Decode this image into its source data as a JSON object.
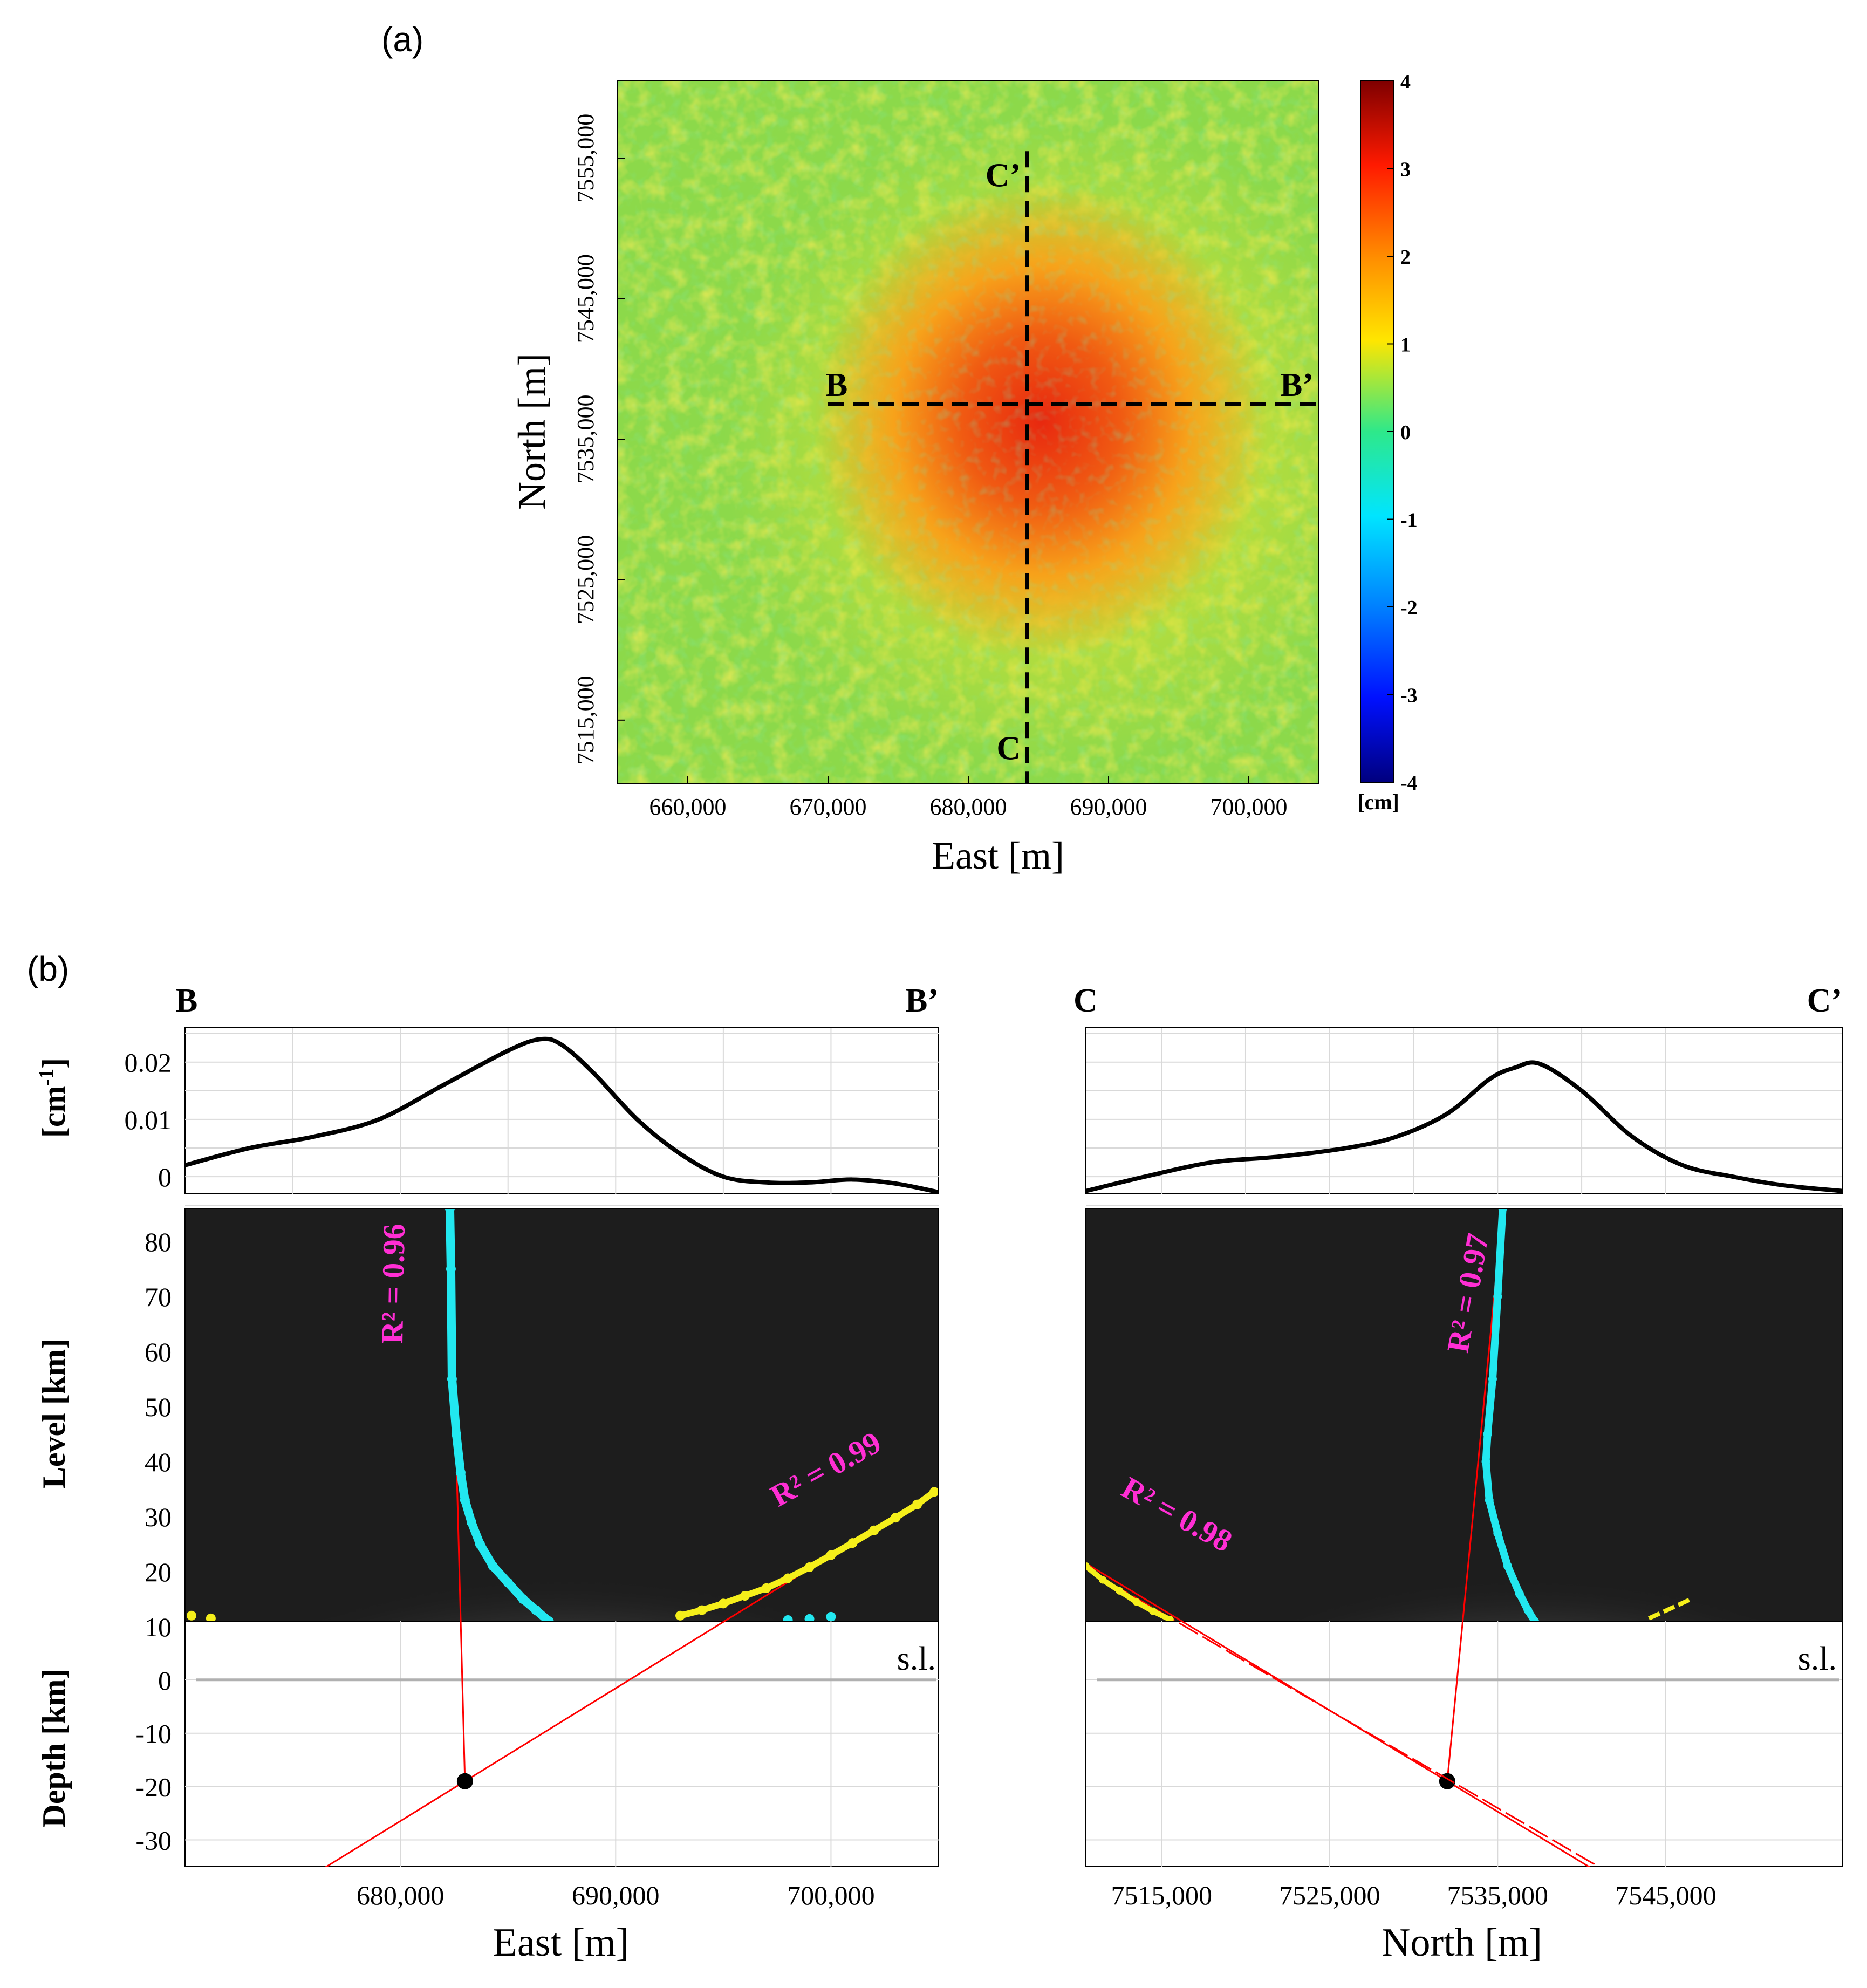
{
  "panel_a_label": "(a)",
  "panel_b_label": "(b)",
  "colors": {
    "profile_line": "#000000",
    "fit_line": "#ff0000",
    "cyan_points": "#22e8f0",
    "yellow_points": "#f5ef1a",
    "r2_label": "#ff2ed4",
    "grid": "#d9d9d9",
    "sea_level": "#b0b0b0"
  },
  "chart_data": [
    {
      "type": "heatmap",
      "title": "",
      "xlabel": "East [m]",
      "ylabel": "North [m]",
      "x_ticks": [
        "660,000",
        "670,000",
        "680,000",
        "690,000",
        "700,000"
      ],
      "x_tick_values": [
        660000,
        670000,
        680000,
        690000,
        700000
      ],
      "y_ticks": [
        "7515,000",
        "7525,000",
        "7535,000",
        "7545,000",
        "7555,000"
      ],
      "y_tick_values": [
        7515000,
        7525000,
        7535000,
        7545000,
        7555000
      ],
      "xlim": [
        655000,
        705000
      ],
      "ylim": [
        7510500,
        7560500
      ],
      "colorbar": {
        "ticks": [
          "4",
          "3",
          "2",
          "1",
          "0",
          "-1",
          "-2",
          "-3",
          "-4"
        ],
        "range": [
          -4,
          4
        ],
        "unit": "[cm]"
      },
      "anomaly_center": {
        "east": 686000,
        "north": 7537000,
        "peak_cm": 3.2
      },
      "profiles": [
        {
          "start_label": "B",
          "end_label": "B’",
          "orientation": "east-west",
          "north": 7537500,
          "east_range": [
            670000,
            705000
          ]
        },
        {
          "start_label": "C",
          "end_label": "C’",
          "orientation": "north-south",
          "east": 684200,
          "north_range": [
            7510500,
            7555500
          ]
        }
      ]
    },
    {
      "type": "line",
      "profile": {
        "start_label": "B",
        "end_label": "B’"
      },
      "xlabel": "East [m]",
      "x_ticks": [
        "680,000",
        "690,000",
        "700,000"
      ],
      "x_tick_values": [
        680000,
        690000,
        700000
      ],
      "xlim": [
        670000,
        705000
      ],
      "top": {
        "ylabel_main": "[cm",
        "ylabel_sup": "-1",
        "ylabel_close": "]",
        "y_ticks": [
          "0.02",
          "0.01",
          "0"
        ],
        "ylim": [
          -0.003,
          0.026
        ],
        "x": [
          670000,
          673000,
          676000,
          679000,
          682000,
          685000,
          686500,
          687500,
          689000,
          691000,
          693000,
          695000,
          697000,
          699000,
          701000,
          703000,
          705000
        ],
        "y": [
          0.002,
          0.005,
          0.007,
          0.01,
          0.016,
          0.022,
          0.024,
          0.023,
          0.018,
          0.01,
          0.004,
          0.0,
          -0.001,
          -0.001,
          -0.0005,
          -0.0012,
          -0.0027
        ]
      },
      "level": {
        "ylabel": "Level [km]",
        "y_ticks": [
          "80",
          "70",
          "60",
          "50",
          "40",
          "30",
          "20",
          "10"
        ],
        "ylim": [
          11,
          86
        ],
        "cyan_x": [
          682300,
          682350,
          682400,
          682600,
          682800,
          683000,
          683300,
          683700,
          684300,
          685000,
          685700,
          686300,
          686900
        ],
        "cyan_y": [
          86,
          75,
          55,
          45,
          38,
          33,
          29,
          25,
          21,
          18,
          15,
          13,
          11
        ],
        "yellow_x": [
          693000,
          694000,
          695000,
          696000,
          697000,
          698000,
          699000,
          700000,
          701000,
          702000,
          703000,
          704000,
          704800
        ],
        "yellow_y": [
          12,
          13,
          14.2,
          15.6,
          17,
          18.8,
          20.8,
          23,
          25.2,
          27.5,
          29.8,
          32.2,
          34.5
        ],
        "r2_left": "R² = 0.96",
        "r2_right": "R² = 0.99"
      },
      "depth": {
        "ylabel": "Depth [km]",
        "y_ticks": [
          "10",
          "0",
          "-10",
          "-20",
          "-30"
        ],
        "ylim": [
          -35,
          11
        ],
        "sea_level_label": "s.l.",
        "source_point": {
          "east": 683000,
          "depth": -19
        }
      }
    },
    {
      "type": "line",
      "profile": {
        "start_label": "C",
        "end_label": "C’"
      },
      "xlabel": "North [m]",
      "x_ticks": [
        "7515,000",
        "7525,000",
        "7535,000",
        "7545,000"
      ],
      "x_tick_values": [
        7515000,
        7525000,
        7535000,
        7545000
      ],
      "xlim": [
        7510500,
        7555500
      ],
      "top": {
        "ylim": [
          -0.003,
          0.026
        ],
        "x": [
          7510500,
          7514000,
          7518000,
          7522000,
          7526000,
          7529000,
          7532000,
          7534500,
          7536000,
          7537500,
          7540000,
          7543000,
          7546000,
          7549000,
          7552000,
          7555500
        ],
        "y": [
          -0.0025,
          0.0,
          0.0025,
          0.0035,
          0.005,
          0.007,
          0.011,
          0.017,
          0.019,
          0.0197,
          0.015,
          0.007,
          0.002,
          0.0,
          -0.0015,
          -0.0025
        ]
      },
      "level": {
        "ylim": [
          11,
          86
        ],
        "cyan_x": [
          7535300,
          7535000,
          7534700,
          7534400,
          7534300,
          7534500,
          7535000,
          7535600,
          7536300,
          7536800,
          7537200
        ],
        "cyan_y": [
          86,
          70,
          55,
          45,
          40,
          33,
          27,
          21,
          16,
          13,
          11
        ],
        "yellow_x": [
          7510500,
          7511500,
          7512500,
          7513500,
          7514500,
          7515500
        ],
        "yellow_y": [
          21,
          18.5,
          16.5,
          14.5,
          12.8,
          11.3
        ],
        "yellow2_x": [
          7544000,
          7546500
        ],
        "yellow2_y": [
          11.5,
          15
        ],
        "r2_left": "R² = 0.98",
        "r2_right": "R² = 0.97"
      },
      "depth": {
        "ylim": [
          -35,
          11
        ],
        "sea_level_label": "s.l.",
        "source_point": {
          "north": 7532000,
          "depth": -19
        }
      }
    }
  ]
}
